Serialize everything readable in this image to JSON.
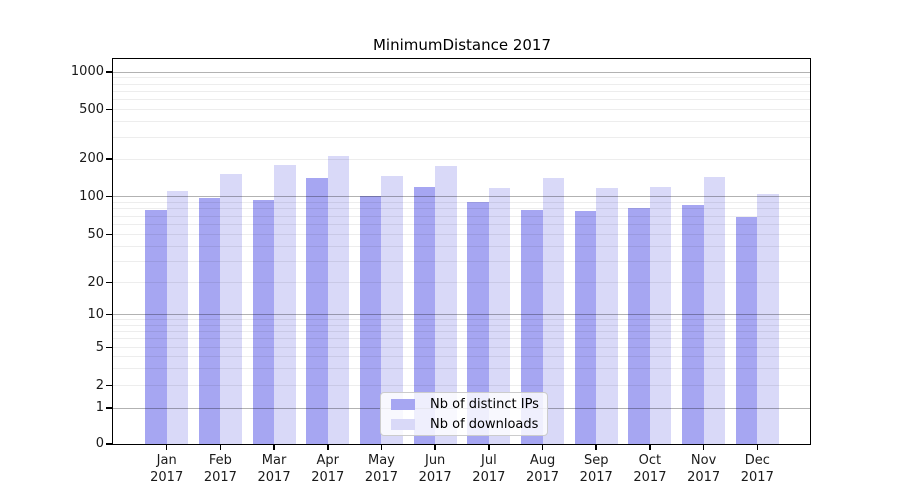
{
  "chart_data": {
    "type": "bar",
    "title": "MinimumDistance 2017",
    "categories": [
      "Jan 2017",
      "Feb 2017",
      "Mar 2017",
      "Apr 2017",
      "May 2017",
      "Jun 2017",
      "Jul 2017",
      "Aug 2017",
      "Sep 2017",
      "Oct 2017",
      "Nov 2017",
      "Dec 2017"
    ],
    "series": [
      {
        "name": "Nb of distinct IPs",
        "color": "#a6a6f2",
        "values": [
          78,
          98,
          93,
          142,
          101,
          119,
          90,
          78,
          77,
          81,
          85,
          69
        ]
      },
      {
        "name": "Nb of downloads",
        "color": "#d9d9f8",
        "values": [
          111,
          151,
          179,
          210,
          145,
          176,
          118,
          140,
          116,
          119,
          144,
          104
        ]
      }
    ],
    "yscale": "symlog",
    "y_ticks": [
      0,
      1,
      2,
      5,
      10,
      20,
      50,
      100,
      200,
      500,
      1000
    ],
    "y_major_gridlines": [
      1,
      10,
      100,
      1000
    ],
    "ylim": [
      0,
      1250
    ],
    "xlabel": "",
    "ylabel": "",
    "grid": true,
    "gridlines_above_bars": true,
    "legend_position": "lower center"
  }
}
